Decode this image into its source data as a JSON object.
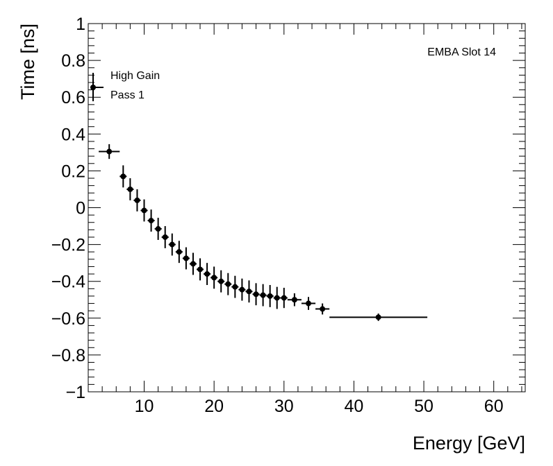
{
  "chart_data": {
    "type": "scatter",
    "title": "",
    "annotation": "EMBA Slot 14",
    "xlabel": "Energy [GeV]",
    "ylabel": "Time [ns]",
    "xlim": [
      2,
      64.5
    ],
    "ylim": [
      -1,
      1
    ],
    "grid": false,
    "legend": {
      "position": "top-left",
      "entries": [
        "High Gain",
        "Pass 1"
      ]
    },
    "x_ticks": [
      10,
      20,
      30,
      40,
      50,
      60
    ],
    "y_ticks": [
      -1,
      -0.8,
      -0.6,
      -0.4,
      -0.2,
      0,
      0.2,
      0.4,
      0.6,
      0.8,
      1
    ],
    "x_tick_labels": [
      "10",
      "20",
      "30",
      "40",
      "50",
      "60"
    ],
    "y_tick_labels": [
      "−1",
      "−0.8",
      "−0.6",
      "−0.4",
      "−0.2",
      "0",
      "0.2",
      "0.4",
      "0.6",
      "0.8",
      "1"
    ],
    "series": [
      {
        "name": "High Gain",
        "points": [
          {
            "x": 5,
            "y": 0.305,
            "xlo": 3.5,
            "xhi": 6.5,
            "yerr": 0.04
          },
          {
            "x": 7,
            "y": 0.17,
            "xlo": 6.5,
            "xhi": 7.5,
            "yerr": 0.06
          },
          {
            "x": 8,
            "y": 0.1,
            "xlo": 7.5,
            "xhi": 8.5,
            "yerr": 0.06
          },
          {
            "x": 9,
            "y": 0.04,
            "xlo": 8.5,
            "xhi": 9.5,
            "yerr": 0.06
          },
          {
            "x": 10,
            "y": -0.015,
            "xlo": 9.5,
            "xhi": 10.5,
            "yerr": 0.06
          },
          {
            "x": 11,
            "y": -0.07,
            "xlo": 10.5,
            "xhi": 11.5,
            "yerr": 0.06
          },
          {
            "x": 12,
            "y": -0.115,
            "xlo": 11.5,
            "xhi": 12.5,
            "yerr": 0.06
          },
          {
            "x": 13,
            "y": -0.16,
            "xlo": 12.5,
            "xhi": 13.5,
            "yerr": 0.06
          },
          {
            "x": 14,
            "y": -0.2,
            "xlo": 13.5,
            "xhi": 14.5,
            "yerr": 0.06
          },
          {
            "x": 15,
            "y": -0.24,
            "xlo": 14.5,
            "xhi": 15.5,
            "yerr": 0.06
          },
          {
            "x": 16,
            "y": -0.275,
            "xlo": 15.5,
            "xhi": 16.5,
            "yerr": 0.06
          },
          {
            "x": 17,
            "y": -0.305,
            "xlo": 16.5,
            "xhi": 17.5,
            "yerr": 0.06
          },
          {
            "x": 18,
            "y": -0.335,
            "xlo": 17.5,
            "xhi": 18.5,
            "yerr": 0.06
          },
          {
            "x": 19,
            "y": -0.36,
            "xlo": 18.5,
            "xhi": 19.5,
            "yerr": 0.06
          },
          {
            "x": 20,
            "y": -0.38,
            "xlo": 19.5,
            "xhi": 20.5,
            "yerr": 0.06
          },
          {
            "x": 21,
            "y": -0.4,
            "xlo": 20.5,
            "xhi": 21.5,
            "yerr": 0.06
          },
          {
            "x": 22,
            "y": -0.415,
            "xlo": 21.5,
            "xhi": 22.5,
            "yerr": 0.06
          },
          {
            "x": 23,
            "y": -0.43,
            "xlo": 22.5,
            "xhi": 23.5,
            "yerr": 0.06
          },
          {
            "x": 24,
            "y": -0.445,
            "xlo": 23.5,
            "xhi": 24.5,
            "yerr": 0.06
          },
          {
            "x": 25,
            "y": -0.455,
            "xlo": 24.5,
            "xhi": 25.5,
            "yerr": 0.06
          },
          {
            "x": 26,
            "y": -0.47,
            "xlo": 25.5,
            "xhi": 26.5,
            "yerr": 0.06
          },
          {
            "x": 27,
            "y": -0.475,
            "xlo": 26.5,
            "xhi": 27.5,
            "yerr": 0.06
          },
          {
            "x": 28,
            "y": -0.48,
            "xlo": 27.5,
            "xhi": 28.5,
            "yerr": 0.06
          },
          {
            "x": 29,
            "y": -0.49,
            "xlo": 28.5,
            "xhi": 29.5,
            "yerr": 0.06
          },
          {
            "x": 30,
            "y": -0.49,
            "xlo": 29.5,
            "xhi": 30.5,
            "yerr": 0.055
          },
          {
            "x": 31.5,
            "y": -0.5,
            "xlo": 30.5,
            "xhi": 32.5,
            "yerr": 0.035
          },
          {
            "x": 33.5,
            "y": -0.52,
            "xlo": 32.5,
            "xhi": 34.5,
            "yerr": 0.035
          },
          {
            "x": 35.5,
            "y": -0.55,
            "xlo": 34.5,
            "xhi": 36.5,
            "yerr": 0.03
          },
          {
            "x": 43.5,
            "y": -0.595,
            "xlo": 36.5,
            "xhi": 50.5,
            "yerr": 0.02
          }
        ]
      }
    ]
  }
}
